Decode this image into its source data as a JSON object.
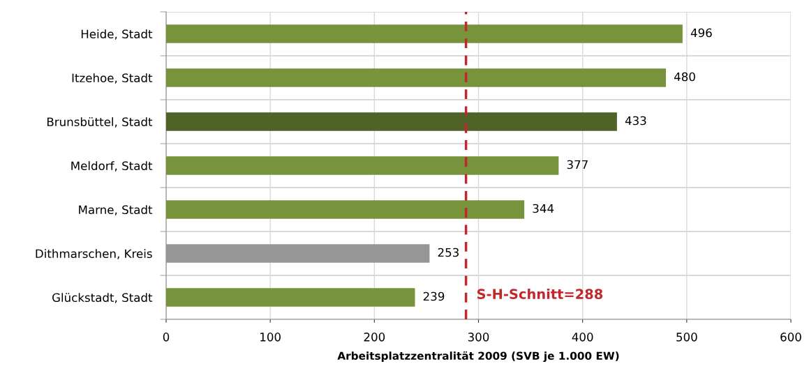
{
  "chart_data": {
    "type": "bar",
    "orientation": "horizontal",
    "xlabel": "Arbeitsplatzzentralität 2009 (SVB je 1.000 EW)",
    "categories": [
      "Heide, Stadt",
      "Itzehoe, Stadt",
      "Brunsbüttel, Stadt",
      "Meldorf, Stadt",
      "Marne, Stadt",
      "Dithmarschen, Kreis",
      "Glückstadt, Stadt"
    ],
    "values": [
      496,
      480,
      433,
      377,
      344,
      253,
      239
    ],
    "colors": [
      "#77933c",
      "#77933c",
      "#4f6228",
      "#77933c",
      "#77933c",
      "#969696",
      "#77933c"
    ],
    "data_labels": true,
    "xlim": [
      0,
      600
    ],
    "xticks": [
      0,
      100,
      200,
      300,
      400,
      500,
      600
    ],
    "grid": true,
    "ref_lines": [
      {
        "axis": "x",
        "value": 288,
        "label": "S-H-Schnitt=288",
        "color": "#c0282d",
        "line_style": "dashed"
      }
    ]
  }
}
